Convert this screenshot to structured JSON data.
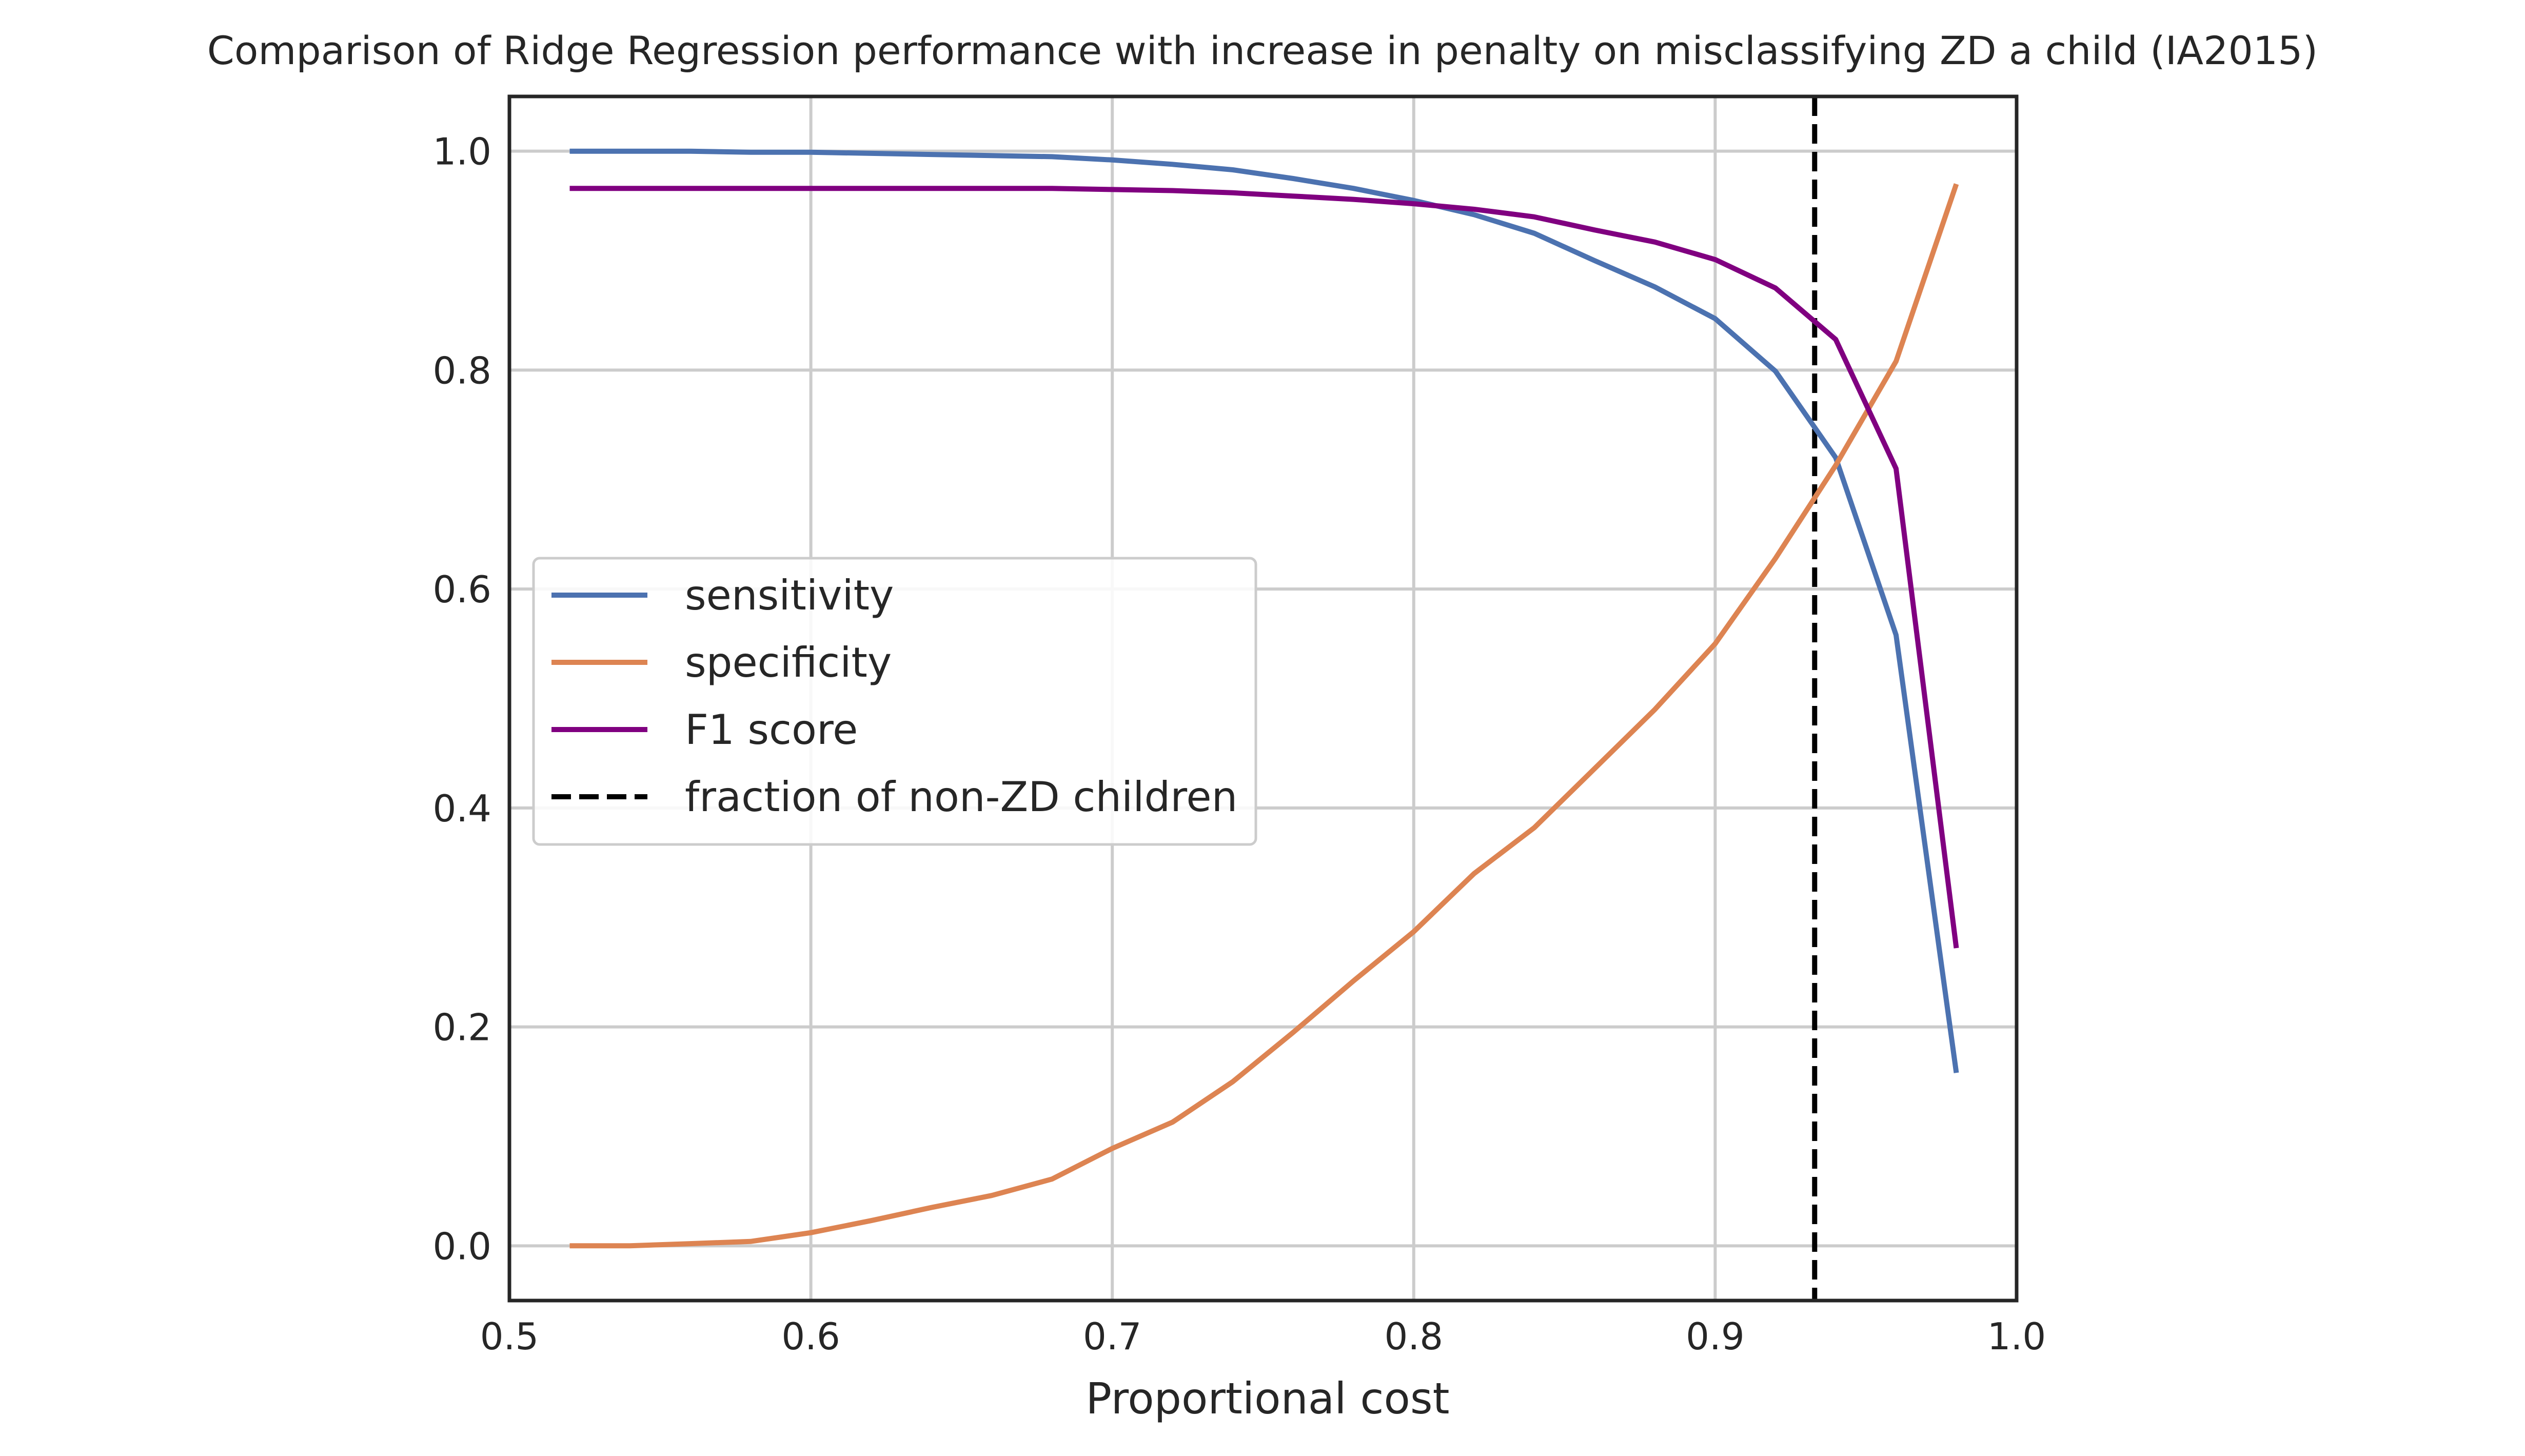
{
  "chart_data": {
    "type": "line",
    "title": "Comparison of Ridge Regression performance with increase in penalty on misclassifying ZD a child (IA2015)",
    "xlabel": "Proportional cost",
    "ylabel": "",
    "xlim": [
      0.5,
      1.0
    ],
    "ylim": [
      -0.05,
      1.05
    ],
    "xticks": [
      0.5,
      0.6,
      0.7,
      0.8,
      0.9,
      1.0
    ],
    "xtick_labels": [
      "0.5",
      "0.6",
      "0.7",
      "0.8",
      "0.9",
      "1.0"
    ],
    "yticks": [
      0.0,
      0.2,
      0.4,
      0.6,
      0.8,
      1.0
    ],
    "ytick_labels": [
      "0.0",
      "0.2",
      "0.4",
      "0.6",
      "0.8",
      "1.0"
    ],
    "grid": true,
    "legend_position": "center-left",
    "x": [
      0.52,
      0.54,
      0.56,
      0.58,
      0.6,
      0.62,
      0.64,
      0.66,
      0.68,
      0.7,
      0.72,
      0.74,
      0.76,
      0.78,
      0.8,
      0.82,
      0.84,
      0.86,
      0.88,
      0.9,
      0.92,
      0.94,
      0.96,
      0.98
    ],
    "series": [
      {
        "name": "sensitivity",
        "color": "#4c72b0",
        "style": "solid",
        "values": [
          1.0,
          1.0,
          1.0,
          0.999,
          0.999,
          0.998,
          0.997,
          0.996,
          0.995,
          0.992,
          0.988,
          0.983,
          0.975,
          0.966,
          0.955,
          0.942,
          0.925,
          0.9,
          0.876,
          0.847,
          0.799,
          0.72,
          0.558,
          0.158
        ]
      },
      {
        "name": "specificity",
        "color": "#dd8452",
        "style": "solid",
        "values": [
          0.0,
          0.0,
          0.002,
          0.004,
          0.012,
          0.023,
          0.035,
          0.046,
          0.061,
          0.089,
          0.113,
          0.15,
          0.195,
          0.242,
          0.287,
          0.34,
          0.382,
          0.436,
          0.49,
          0.55,
          0.628,
          0.713,
          0.808,
          0.97
        ]
      },
      {
        "name": "F1 score",
        "color": "#800080",
        "style": "solid",
        "values": [
          0.966,
          0.966,
          0.966,
          0.966,
          0.966,
          0.966,
          0.966,
          0.966,
          0.966,
          0.965,
          0.964,
          0.962,
          0.959,
          0.956,
          0.952,
          0.947,
          0.94,
          0.928,
          0.917,
          0.901,
          0.875,
          0.828,
          0.71,
          0.272
        ]
      }
    ],
    "vline": {
      "name": "fraction of non-ZD children",
      "x": 0.933,
      "color": "#000000",
      "style": "dashed"
    }
  }
}
